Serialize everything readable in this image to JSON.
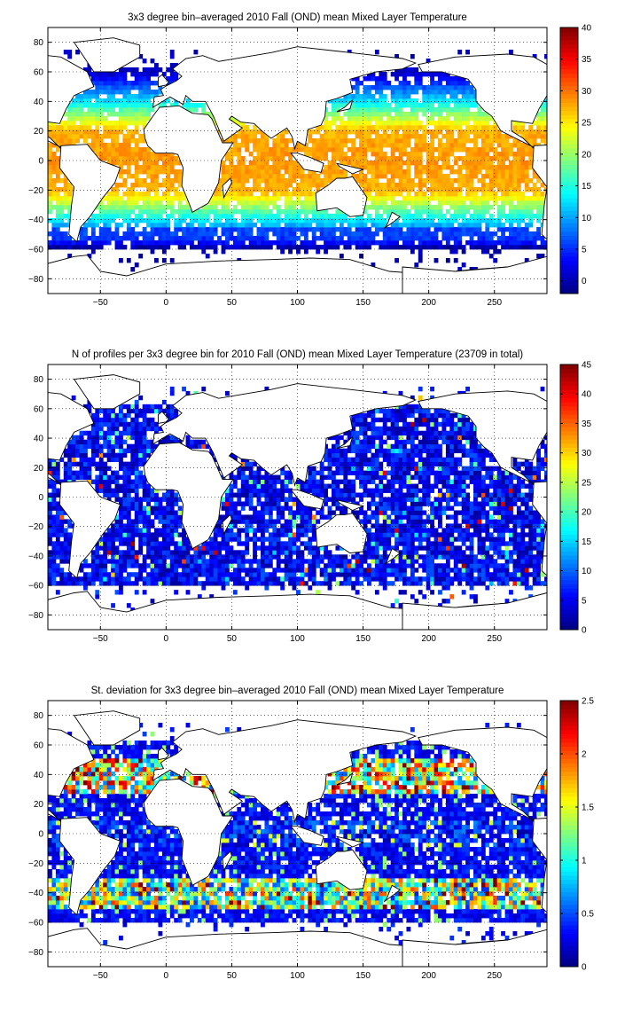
{
  "chart_data": [
    {
      "type": "heatmap",
      "title": "3x3 degree bin–averaged 2010 Fall (OND) mean Mixed Layer Temperature",
      "xlim": [
        -90,
        290
      ],
      "ylim": [
        -90,
        90
      ],
      "x_ticks": [
        -50,
        0,
        50,
        100,
        150,
        200,
        250
      ],
      "y_ticks": [
        80,
        60,
        40,
        20,
        0,
        -20,
        -40,
        -60,
        -80
      ],
      "clim": [
        -2,
        40
      ],
      "colorbar_ticks": [
        0,
        5,
        10,
        15,
        20,
        25,
        30,
        35,
        40
      ],
      "colormap": "jet",
      "grid": "dotted",
      "colorbar": "right",
      "field": "temperature"
    },
    {
      "type": "heatmap",
      "title": "N of profiles per 3x3 degree bin for 2010 Fall (OND) mean Mixed Layer Temperature  (23709 in total)",
      "xlim": [
        -90,
        290
      ],
      "ylim": [
        -90,
        90
      ],
      "x_ticks": [
        -50,
        0,
        50,
        100,
        150,
        200,
        250
      ],
      "y_ticks": [
        80,
        60,
        40,
        20,
        0,
        -20,
        -40,
        -60,
        -80
      ],
      "clim": [
        0,
        45
      ],
      "colorbar_ticks": [
        0,
        5,
        10,
        15,
        20,
        25,
        30,
        35,
        40,
        45
      ],
      "colormap": "jet",
      "grid": "dotted",
      "colorbar": "right",
      "field": "count"
    },
    {
      "type": "heatmap",
      "title": "St. deviation for 3x3 degree bin–averaged 2010 Fall (OND) mean Mixed Layer Temperature",
      "xlim": [
        -90,
        290
      ],
      "ylim": [
        -90,
        90
      ],
      "x_ticks": [
        -50,
        0,
        50,
        100,
        150,
        200,
        250
      ],
      "y_ticks": [
        80,
        60,
        40,
        20,
        0,
        -20,
        -40,
        -60,
        -80
      ],
      "clim": [
        0,
        2.5
      ],
      "colorbar_ticks": [
        0,
        0.5,
        1,
        1.5,
        2,
        2.5
      ],
      "colormap": "jet",
      "grid": "dotted",
      "colorbar": "right",
      "field": "stdev"
    }
  ]
}
